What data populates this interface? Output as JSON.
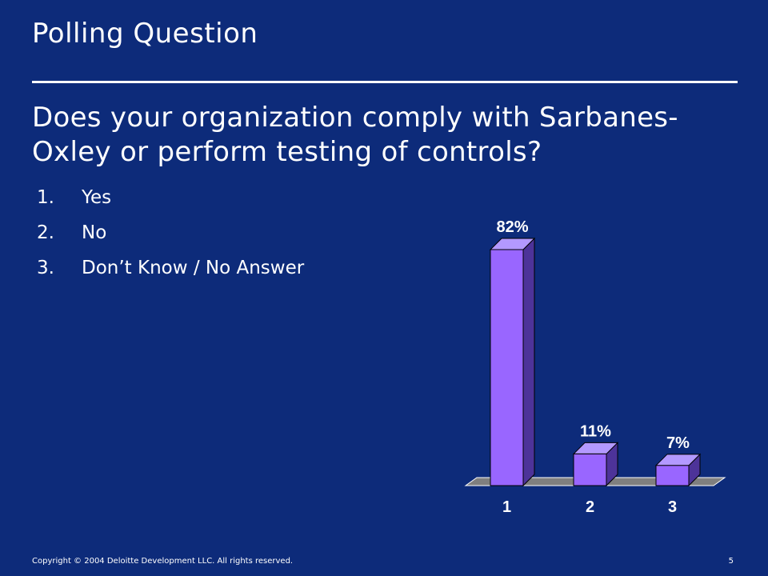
{
  "slide": {
    "title": "Polling Question",
    "question": "Does your organization comply with Sarbanes-Oxley or perform testing of controls?",
    "options": [
      {
        "number": "1.",
        "label": "Yes"
      },
      {
        "number": "2.",
        "label": "No"
      },
      {
        "number": "3.",
        "label": "Don’t Know / No Answer"
      }
    ]
  },
  "footer": {
    "copyright": "Copyright © 2004 Deloitte Development LLC. All rights reserved.",
    "page_number": "5"
  },
  "colors": {
    "background": "#0d2b7a",
    "bar_front": "#9966ff",
    "bar_side": "#4d3399",
    "bar_top": "#b399ff",
    "floor": "#7f7f7f"
  },
  "chart_data": {
    "type": "bar",
    "categories": [
      "1",
      "2",
      "3"
    ],
    "values": [
      82,
      11,
      7
    ],
    "value_labels": [
      "82%",
      "11%",
      "7%"
    ],
    "title": "",
    "xlabel": "",
    "ylabel": "",
    "ylim": [
      0,
      82
    ],
    "grid": false,
    "legend": "none",
    "style": "3d"
  }
}
